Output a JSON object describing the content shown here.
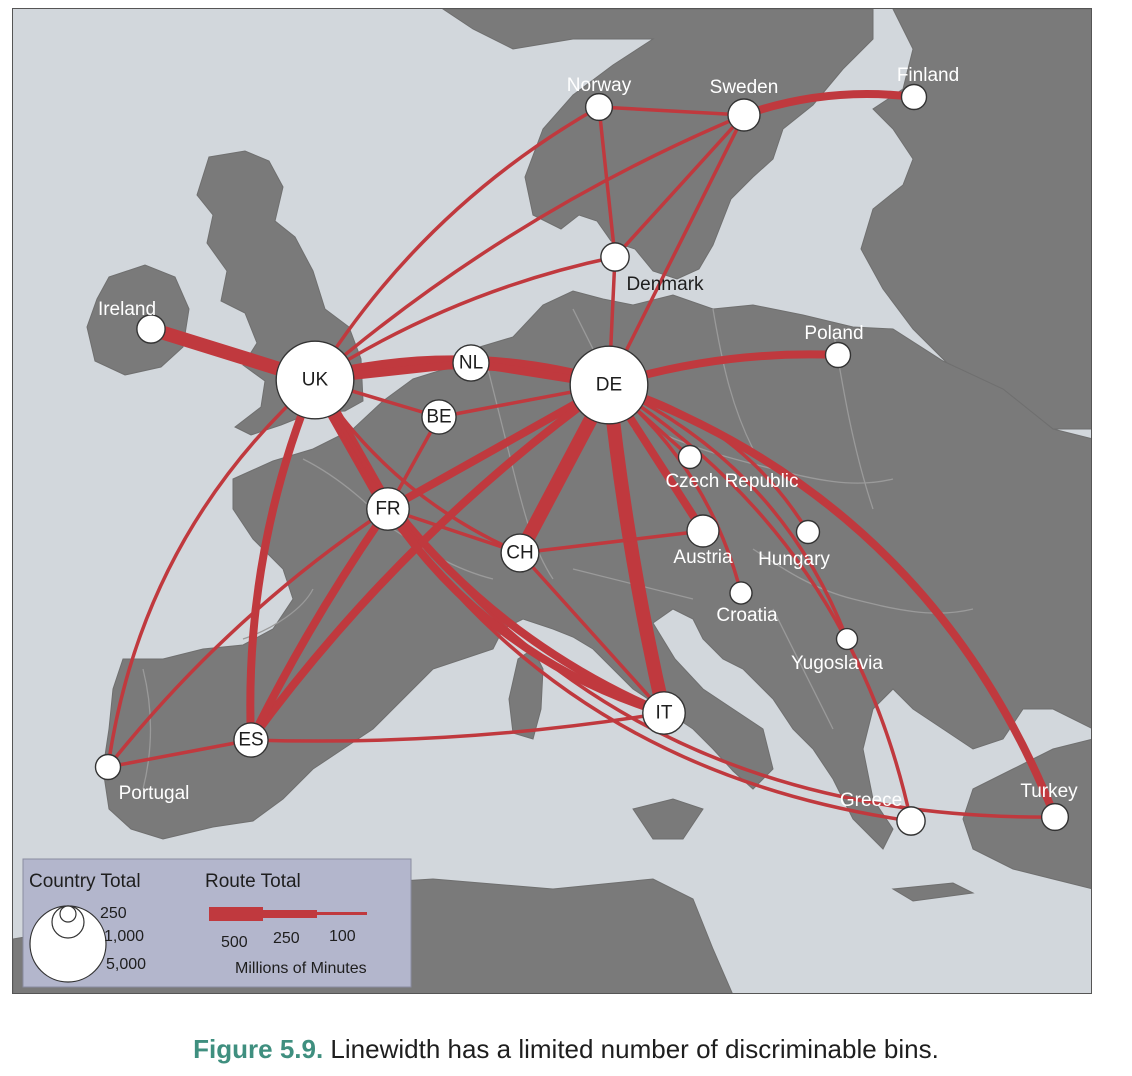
{
  "colors": {
    "sea": "#d2d7dc",
    "land": "#7a7a7a",
    "border": "#9a9a9a",
    "route": "#c0393e",
    "node_fill": "#ffffff",
    "legend_bg": "#b3b6cc",
    "caption_accent": "#3f8f7f"
  },
  "nodes": [
    {
      "key": "uk",
      "label": "UK",
      "total": 5000
    },
    {
      "key": "de",
      "label": "DE",
      "total": 5000
    },
    {
      "key": "fr",
      "label": "FR",
      "total": 1000
    },
    {
      "key": "it",
      "label": "IT",
      "total": 1000
    },
    {
      "key": "ch",
      "label": "CH",
      "total": 700
    },
    {
      "key": "nl",
      "label": "NL",
      "total": 600
    },
    {
      "key": "be",
      "label": "BE",
      "total": 500
    },
    {
      "key": "es",
      "label": "ES",
      "total": 500
    },
    {
      "key": "sweden",
      "label": "Sweden",
      "total": 400
    },
    {
      "key": "denmark",
      "label": "Denmark",
      "total": 250
    },
    {
      "key": "norway",
      "label": "Norway",
      "total": 200
    },
    {
      "key": "finland",
      "label": "Finland",
      "total": 150
    },
    {
      "key": "ireland",
      "label": "Ireland",
      "total": 250
    },
    {
      "key": "poland",
      "label": "Poland",
      "total": 150
    },
    {
      "key": "czech",
      "label": "Czech Republic",
      "total": 100
    },
    {
      "key": "austria",
      "label": "Austria",
      "total": 400
    },
    {
      "key": "hungary",
      "label": "Hungary",
      "total": 100
    },
    {
      "key": "croatia",
      "label": "Croatia",
      "total": 80
    },
    {
      "key": "yugoslavia",
      "label": "Yugoslavia",
      "total": 60
    },
    {
      "key": "portugal",
      "label": "Portugal",
      "total": 150
    },
    {
      "key": "greece",
      "label": "Greece",
      "total": 250
    },
    {
      "key": "turkey",
      "label": "Turkey",
      "total": 200
    }
  ],
  "routes": [
    {
      "from": "uk",
      "to": "de",
      "total": 500
    },
    {
      "from": "uk",
      "to": "ireland",
      "total": 500
    },
    {
      "from": "uk",
      "to": "fr",
      "total": 500
    },
    {
      "from": "uk",
      "to": "nl",
      "total": 250
    },
    {
      "from": "uk",
      "to": "be",
      "total": 100
    },
    {
      "from": "uk",
      "to": "sweden",
      "total": 100
    },
    {
      "from": "uk",
      "to": "norway",
      "total": 100
    },
    {
      "from": "uk",
      "to": "denmark",
      "total": 100
    },
    {
      "from": "uk",
      "to": "es",
      "total": 250
    },
    {
      "from": "uk",
      "to": "it",
      "total": 250
    },
    {
      "from": "uk",
      "to": "ch",
      "total": 100
    },
    {
      "from": "uk",
      "to": "portugal",
      "total": 100
    },
    {
      "from": "uk",
      "to": "greece",
      "total": 100
    },
    {
      "from": "uk",
      "to": "turkey",
      "total": 100
    },
    {
      "from": "de",
      "to": "nl",
      "total": 250
    },
    {
      "from": "de",
      "to": "be",
      "total": 100
    },
    {
      "from": "de",
      "to": "fr",
      "total": 250
    },
    {
      "from": "de",
      "to": "ch",
      "total": 500
    },
    {
      "from": "de",
      "to": "it",
      "total": 500
    },
    {
      "from": "de",
      "to": "es",
      "total": 250
    },
    {
      "from": "de",
      "to": "poland",
      "total": 250
    },
    {
      "from": "de",
      "to": "czech",
      "total": 100
    },
    {
      "from": "de",
      "to": "austria",
      "total": 250
    },
    {
      "from": "de",
      "to": "hungary",
      "total": 100
    },
    {
      "from": "de",
      "to": "croatia",
      "total": 100
    },
    {
      "from": "de",
      "to": "yugoslavia",
      "total": 100
    },
    {
      "from": "de",
      "to": "greece",
      "total": 100
    },
    {
      "from": "de",
      "to": "turkey",
      "total": 250
    },
    {
      "from": "de",
      "to": "sweden",
      "total": 100
    },
    {
      "from": "de",
      "to": "denmark",
      "total": 100
    },
    {
      "from": "sweden",
      "to": "finland",
      "total": 250
    },
    {
      "from": "sweden",
      "to": "norway",
      "total": 100
    },
    {
      "from": "sweden",
      "to": "denmark",
      "total": 100
    },
    {
      "from": "norway",
      "to": "denmark",
      "total": 100
    },
    {
      "from": "fr",
      "to": "it",
      "total": 250
    },
    {
      "from": "fr",
      "to": "es",
      "total": 250
    },
    {
      "from": "fr",
      "to": "ch",
      "total": 100
    },
    {
      "from": "fr",
      "to": "be",
      "total": 100
    },
    {
      "from": "fr",
      "to": "portugal",
      "total": 100
    },
    {
      "from": "ch",
      "to": "it",
      "total": 100
    },
    {
      "from": "ch",
      "to": "austria",
      "total": 100
    },
    {
      "from": "es",
      "to": "it",
      "total": 100
    },
    {
      "from": "es",
      "to": "portugal",
      "total": 100
    }
  ],
  "legend": {
    "country_title": "Country Total",
    "country_values": [
      "250",
      "1,000",
      "5,000"
    ],
    "route_title": "Route Total",
    "route_values": [
      "500",
      "250",
      "100"
    ],
    "units": "Millions of Minutes"
  },
  "caption": {
    "figure_number": "Figure 5.9.",
    "text": " Linewidth has a limited number of discriminable bins."
  }
}
